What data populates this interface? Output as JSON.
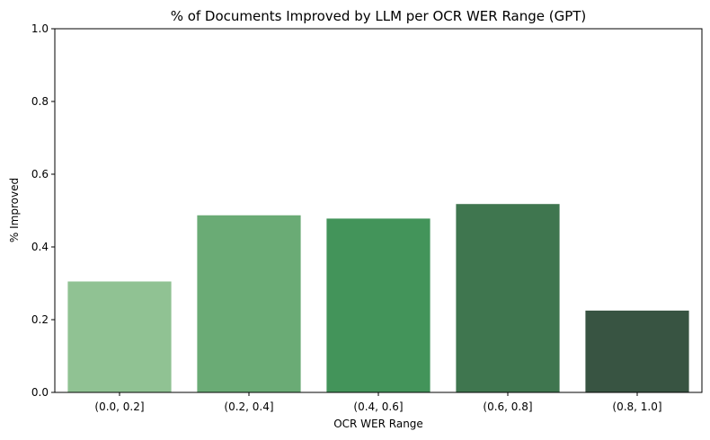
{
  "chart_data": {
    "type": "bar",
    "title": "% of Documents Improved by LLM per OCR WER Range (GPT)",
    "xlabel": "OCR WER Range",
    "ylabel": "% Improved",
    "categories": [
      "(0.0, 0.2]",
      "(0.2, 0.4]",
      "(0.4, 0.6]",
      "(0.6, 0.8]",
      "(0.8, 1.0]"
    ],
    "values": [
      0.305,
      0.487,
      0.478,
      0.518,
      0.225
    ],
    "colors": [
      "#90c293",
      "#6aab75",
      "#43945a",
      "#3f764f",
      "#385442"
    ],
    "ylim": [
      0,
      1.0
    ],
    "yticks": [
      "0.0",
      "0.2",
      "0.4",
      "0.6",
      "0.8",
      "1.0"
    ],
    "grid": false,
    "legend": "none"
  }
}
